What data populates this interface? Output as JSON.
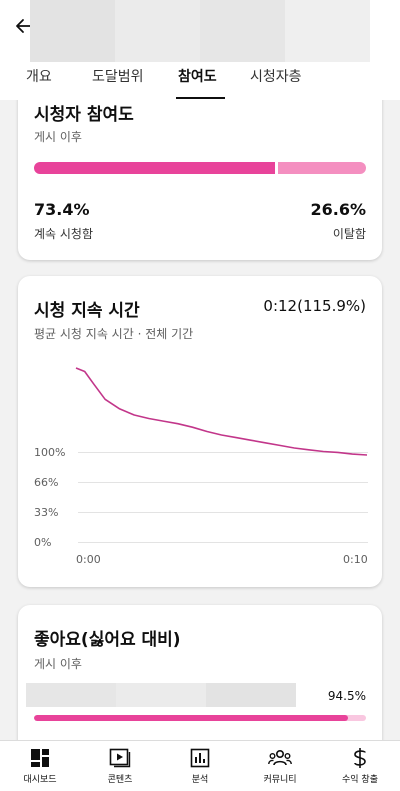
{
  "tabs": [
    {
      "label": "개요"
    },
    {
      "label": "도달범위"
    },
    {
      "label": "참여도"
    },
    {
      "label": "시청자층"
    }
  ],
  "engagement": {
    "title": "시청자 참여도",
    "subtitle": "게시 이후",
    "continued_value": "73.4%",
    "continued_label": "계속 시청함",
    "continued_fraction": 0.734,
    "swiped_value": "26.6%",
    "swiped_label": "이탈함",
    "colors": {
      "continued": "#e8439a",
      "swiped": "#f48fc0"
    }
  },
  "retention": {
    "title": "시청 지속 시간",
    "value": "0:12(115.9%)",
    "subtitle": "평균 시청 지속 시간 · 전체 기간"
  },
  "chart_data": {
    "type": "line",
    "x_ticks": [
      "0:00",
      "0:10"
    ],
    "y_ticks": [
      "100%",
      "66%",
      "33%",
      "0%"
    ],
    "x": [
      0,
      0.3,
      0.6,
      1.0,
      1.5,
      2.0,
      2.5,
      3.0,
      3.5,
      4.0,
      4.5,
      5.0,
      5.5,
      6.0,
      6.5,
      7.0,
      7.5,
      8.0,
      8.5,
      9.0,
      9.5,
      10.0
    ],
    "y": [
      200,
      196,
      182,
      164,
      153,
      146,
      142,
      139,
      136,
      132,
      127,
      123,
      120,
      117,
      114,
      111,
      108,
      106,
      104,
      103,
      101,
      100
    ],
    "ylim": [
      0,
      200
    ],
    "color": "#c2368a",
    "grid": true
  },
  "likes": {
    "title": "좋아요(싫어요 대비)",
    "subtitle": "게시 이후",
    "value": "94.5%",
    "fraction": 0.945,
    "color": "#e8439a"
  },
  "nav": [
    {
      "label": "대시보드",
      "icon": "dashboard-icon"
    },
    {
      "label": "콘텐츠",
      "icon": "content-icon"
    },
    {
      "label": "분석",
      "icon": "analytics-icon"
    },
    {
      "label": "커뮤니티",
      "icon": "community-icon"
    },
    {
      "label": "수익 창출",
      "icon": "monetization-icon"
    }
  ]
}
